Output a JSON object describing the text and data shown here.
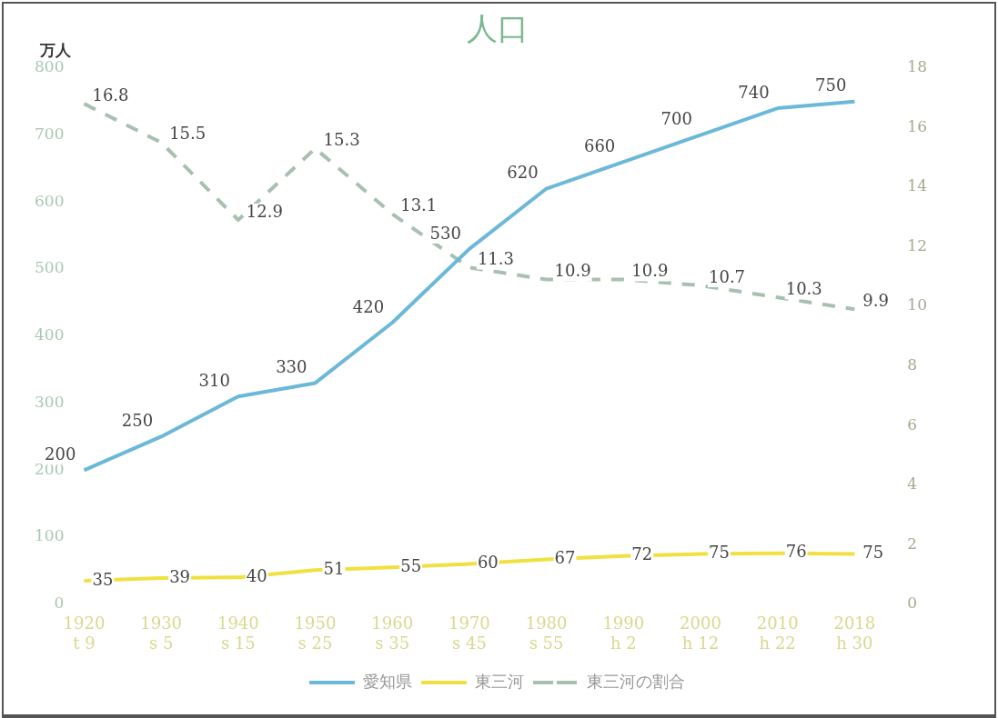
{
  "chart_data": {
    "type": "line",
    "title": "人口",
    "ylabel": "万人",
    "categories": [
      "1920\nt 9",
      "1930\ns 5",
      "1940\ns 15",
      "1950\ns 25",
      "1960\ns 35",
      "1970\ns 45",
      "1980\ns 55",
      "1990\nh 2",
      "2000\nh 12",
      "2010\nh 22",
      "2018\nh 30"
    ],
    "series": [
      {
        "name": "愛知県",
        "color": "#6cb8d8",
        "values": [
          200,
          250,
          310,
          330,
          420,
          530,
          620,
          660,
          700,
          740,
          750
        ]
      },
      {
        "name": "東三河",
        "color": "#f0e040",
        "values": [
          35,
          39,
          40,
          51,
          55,
          60,
          67,
          72,
          75,
          76,
          75
        ]
      },
      {
        "name": "東三河の割合",
        "color": "#a8c0b0",
        "axis": "y2",
        "line_style": "dashed",
        "values": [
          16.8,
          15.5,
          12.9,
          15.3,
          13.1,
          11.3,
          10.9,
          10.9,
          10.7,
          10.3,
          9.9
        ]
      }
    ],
    "ylim": [
      0,
      800
    ],
    "yticks": [
      0,
      100,
      200,
      300,
      400,
      500,
      600,
      700,
      800
    ],
    "y2lim": [
      0,
      18
    ],
    "y2ticks": [
      0,
      2,
      4,
      6,
      8,
      10,
      12,
      14,
      16,
      18
    ],
    "grid": false,
    "legend": "bottom",
    "data_labels": true,
    "marker": "none"
  }
}
